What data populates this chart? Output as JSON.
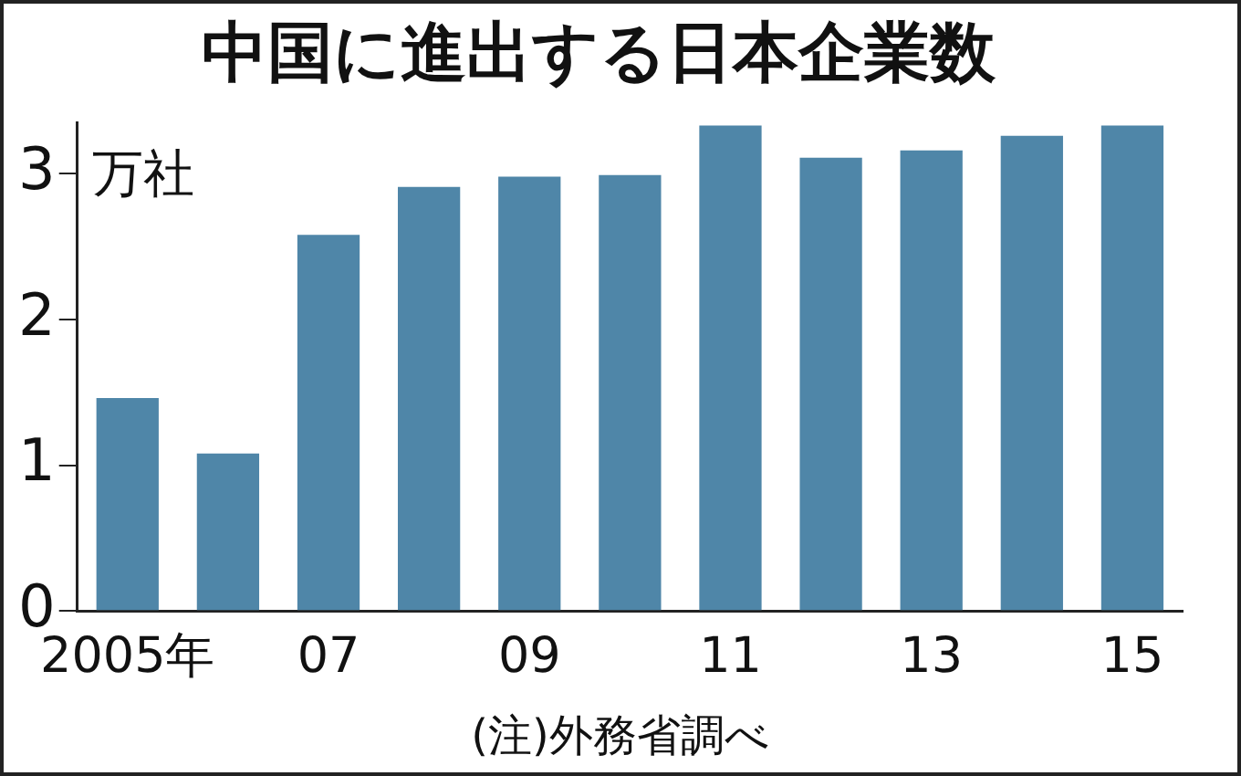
{
  "chart_data": {
    "type": "bar",
    "title": "中国に進出する日本企業数",
    "ylabel": "万社",
    "categories": [
      "2005年",
      null,
      "07",
      null,
      "09",
      null,
      "11",
      null,
      "13",
      null,
      "15"
    ],
    "values": [
      1.46,
      1.08,
      2.58,
      2.91,
      2.98,
      2.99,
      3.33,
      3.11,
      3.16,
      3.26,
      3.33
    ],
    "color": "#4f86a8",
    "ylim": [
      0,
      3.35
    ],
    "yticks": [
      0,
      1,
      2,
      3
    ],
    "grid": false,
    "legend": false,
    "annotations": [
      "(注)外務省調べ"
    ]
  }
}
